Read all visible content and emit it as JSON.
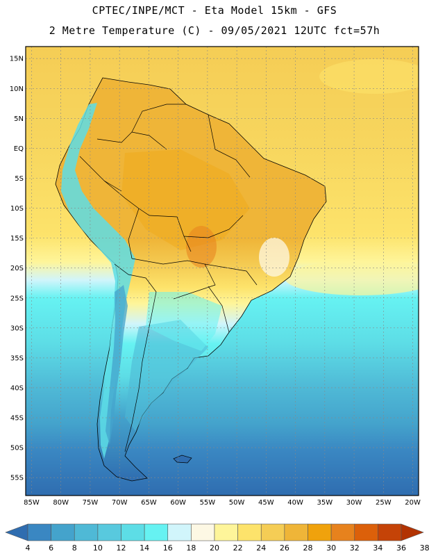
{
  "header": {
    "line1": "CPTEC/INPE/MCT -  Eta Model 15km - GFS",
    "line2": "2 Metre Temperature (C) - 09/05/2021 12UTC fct=57h"
  },
  "map_bounds": {
    "lon_min": -86,
    "lon_max": -19,
    "lat_min": -58,
    "lat_max": 17
  },
  "lat_labels": [
    {
      "lat": 15,
      "text": "15N"
    },
    {
      "lat": 10,
      "text": "10N"
    },
    {
      "lat": 5,
      "text": "5N"
    },
    {
      "lat": 0,
      "text": "EQ"
    },
    {
      "lat": -5,
      "text": "5S"
    },
    {
      "lat": -10,
      "text": "10S"
    },
    {
      "lat": -15,
      "text": "15S"
    },
    {
      "lat": -20,
      "text": "20S"
    },
    {
      "lat": -25,
      "text": "25S"
    },
    {
      "lat": -30,
      "text": "30S"
    },
    {
      "lat": -35,
      "text": "35S"
    },
    {
      "lat": -40,
      "text": "40S"
    },
    {
      "lat": -45,
      "text": "45S"
    },
    {
      "lat": -50,
      "text": "50S"
    },
    {
      "lat": -55,
      "text": "55S"
    }
  ],
  "lon_labels": [
    {
      "lon": -85,
      "text": "85W"
    },
    {
      "lon": -80,
      "text": "80W"
    },
    {
      "lon": -75,
      "text": "75W"
    },
    {
      "lon": -70,
      "text": "70W"
    },
    {
      "lon": -65,
      "text": "65W"
    },
    {
      "lon": -60,
      "text": "60W"
    },
    {
      "lon": -55,
      "text": "55W"
    },
    {
      "lon": -50,
      "text": "50W"
    },
    {
      "lon": -45,
      "text": "45W"
    },
    {
      "lon": -40,
      "text": "40W"
    },
    {
      "lon": -35,
      "text": "35W"
    },
    {
      "lon": -30,
      "text": "30W"
    },
    {
      "lon": -25,
      "text": "25W"
    },
    {
      "lon": -20,
      "text": "20W"
    }
  ],
  "colorbar": {
    "colors": [
      "#2f6db0",
      "#3a87c2",
      "#44a3cc",
      "#4fb9d6",
      "#58c9de",
      "#5ddde6",
      "#66f2f2",
      "#d1f5fb",
      "#fdf8e4",
      "#fef59a",
      "#fde36b",
      "#f5cd55",
      "#efb538",
      "#f0a20c",
      "#e7821d",
      "#dc600a",
      "#c54307",
      "#b23302"
    ],
    "ticks": [
      "4",
      "6",
      "8",
      "10",
      "12",
      "14",
      "16",
      "18",
      "20",
      "22",
      "24",
      "26",
      "28",
      "30",
      "32",
      "34",
      "36",
      "38"
    ]
  }
}
